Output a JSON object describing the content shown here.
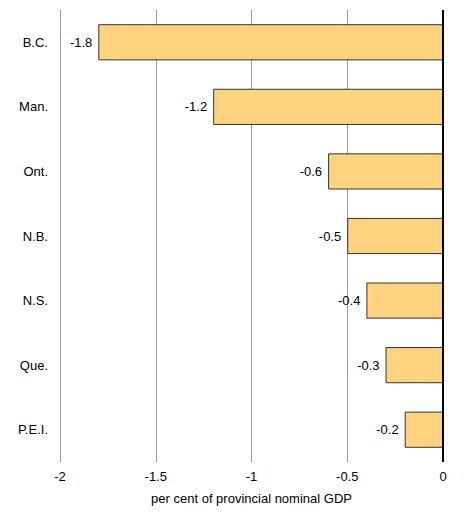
{
  "chart_data": {
    "type": "bar",
    "orientation": "horizontal",
    "categories": [
      "B.C.",
      "Man.",
      "Ont.",
      "N.B.",
      "N.S.",
      "Que.",
      "P.E.I."
    ],
    "values": [
      -1.8,
      -1.2,
      -0.6,
      -0.5,
      -0.4,
      -0.3,
      -0.2
    ],
    "color": "#ffd37f",
    "xlabel": "per cent of provincial nominal GDP",
    "xlim": [
      -2,
      0
    ],
    "xticks": [
      -2,
      -1.5,
      -1,
      -0.5,
      0
    ],
    "grid": true,
    "data_labels": true
  }
}
